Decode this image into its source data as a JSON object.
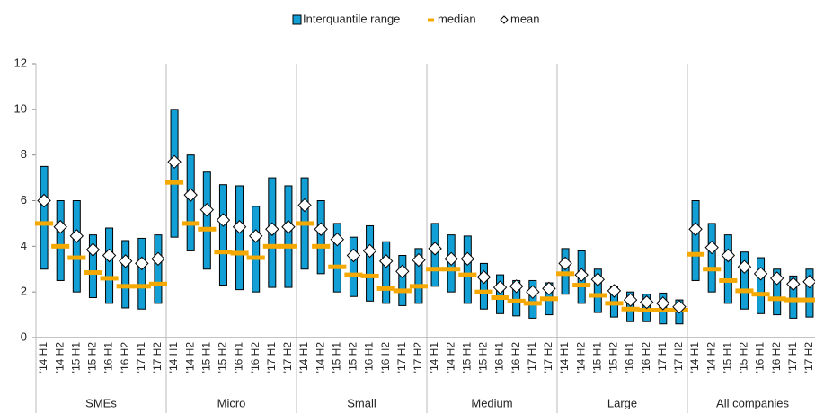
{
  "chart_data": {
    "type": "range-median-mean",
    "groups": [
      "SMEs",
      "Micro",
      "Small",
      "Medium",
      "Large",
      "All companies"
    ],
    "categories": [
      "'14 H1",
      "'14 H2",
      "'15 H1",
      "'15 H2",
      "'16 H1",
      "'16 H2",
      "'17 H1",
      "'17 H2",
      "'14 H1",
      "'14 H2",
      "'15 H1",
      "'15 H2",
      "'16 H1",
      "'16 H2",
      "'17 H1",
      "'17 H2",
      "'14 H1",
      "'14 H2",
      "'15 H1",
      "'15 H2",
      "'16 H1",
      "'16 H2",
      "'17 H1",
      "'17 H2",
      "'14 H1",
      "'14 H2",
      "'15 H1",
      "'15 H2",
      "'16 H1",
      "'16 H2",
      "'17 H1",
      "'17 H2",
      "'14 H1",
      "'14 H2",
      "'15 H1",
      "'15 H2",
      "'16 H1",
      "'16 H2",
      "'17 H1",
      "'17 H2",
      "'14 H1",
      "'14 H2",
      "'15 H1",
      "'15 H2",
      "'16 H1",
      "'16 H2",
      "'17 H1",
      "'17 H2"
    ],
    "series": [
      {
        "name": "Interquantile range",
        "color": "#119fd6",
        "low": [
          3.0,
          2.5,
          2.0,
          1.75,
          1.5,
          1.3,
          1.25,
          1.5,
          4.4,
          3.8,
          3.0,
          2.3,
          2.1,
          2.0,
          2.2,
          2.2,
          3.0,
          2.8,
          2.0,
          1.8,
          1.6,
          1.5,
          1.4,
          1.5,
          2.25,
          2.0,
          1.5,
          1.25,
          1.05,
          0.95,
          0.85,
          1.0,
          1.9,
          1.5,
          1.1,
          0.9,
          0.7,
          0.7,
          0.6,
          0.6,
          2.5,
          2.0,
          1.5,
          1.25,
          1.05,
          1.0,
          0.85,
          0.9
        ],
        "high": [
          7.5,
          6.0,
          6.0,
          4.5,
          4.8,
          4.25,
          4.35,
          4.5,
          10.0,
          8.0,
          7.25,
          6.7,
          6.65,
          5.75,
          7.0,
          6.65,
          7.0,
          6.0,
          5.0,
          4.4,
          4.9,
          4.2,
          3.6,
          3.9,
          5.0,
          4.5,
          4.45,
          3.25,
          2.75,
          2.5,
          2.5,
          2.4,
          3.9,
          3.8,
          3.0,
          2.25,
          2.0,
          1.9,
          1.95,
          1.65,
          6.0,
          5.0,
          4.5,
          3.75,
          3.5,
          3.0,
          2.7,
          3.0
        ]
      },
      {
        "name": "median",
        "color": "#f5a800",
        "values": [
          5.0,
          4.0,
          3.5,
          2.85,
          2.6,
          2.25,
          2.25,
          2.35,
          6.8,
          5.0,
          4.75,
          3.75,
          3.7,
          3.5,
          4.0,
          4.0,
          5.0,
          4.0,
          3.1,
          2.75,
          2.7,
          2.15,
          2.05,
          2.25,
          3.0,
          3.0,
          2.75,
          2.0,
          1.75,
          1.6,
          1.5,
          1.7,
          2.8,
          2.3,
          1.85,
          1.5,
          1.25,
          1.2,
          1.2,
          1.2,
          3.65,
          3.0,
          2.5,
          2.05,
          1.9,
          1.7,
          1.65,
          1.65
        ]
      },
      {
        "name": "mean",
        "color": "#ffffff",
        "values": [
          6.0,
          4.85,
          4.45,
          3.85,
          3.6,
          3.35,
          3.25,
          3.45,
          7.7,
          6.25,
          5.6,
          5.15,
          4.85,
          4.45,
          4.75,
          4.85,
          5.8,
          4.75,
          4.3,
          3.6,
          3.8,
          3.35,
          2.9,
          3.4,
          3.9,
          3.45,
          3.45,
          2.65,
          2.2,
          2.25,
          2.0,
          2.15,
          3.25,
          2.75,
          2.55,
          2.05,
          1.65,
          1.55,
          1.5,
          1.35,
          4.75,
          3.95,
          3.6,
          3.1,
          2.8,
          2.6,
          2.35,
          2.45
        ]
      }
    ],
    "ylim": [
      0,
      12
    ],
    "yticks": [
      0,
      2,
      4,
      6,
      8,
      10,
      12
    ],
    "grid": false
  }
}
